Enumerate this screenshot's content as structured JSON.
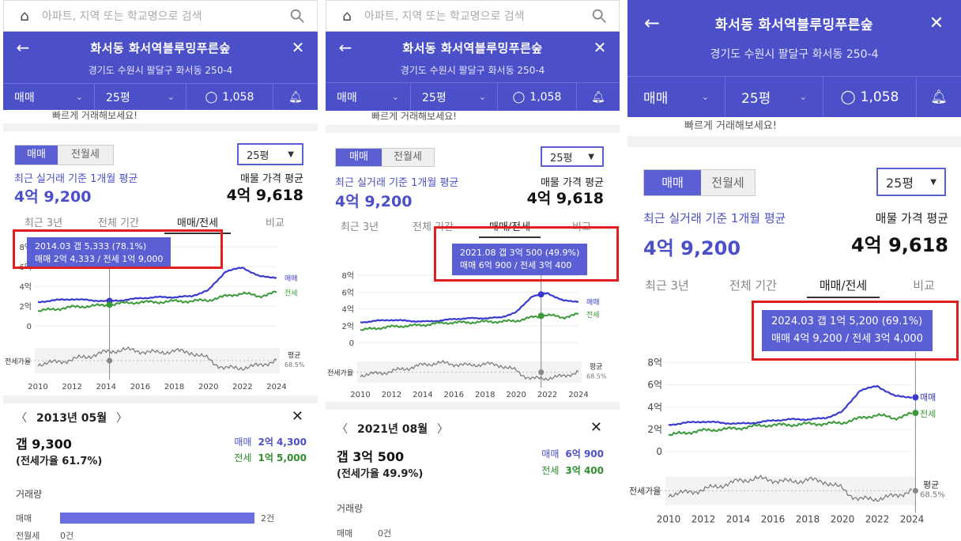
{
  "colors": {
    "brand": "#4b4fc8",
    "sale": "#3a3ad0",
    "jeonse": "#3a9a3a",
    "ratio": "#777777",
    "highlight": "#e02020"
  },
  "search": {
    "placeholder": "아파트, 지역 또는 학교명으로 검색",
    "home_icon": "home-icon",
    "search_icon": "search-icon"
  },
  "header": {
    "title": "화서동 화서역블루밍푸른숲",
    "address": "경기도 수원시 팔달구 화서동 250-4",
    "back_icon": "back-arrow-icon",
    "close_icon": "close-icon"
  },
  "filters": {
    "trade": "매매",
    "size": "25평",
    "comments": "1,058",
    "bell_icon": "bell-icon"
  },
  "toast": "빠르게 거래해보세요!",
  "segment": {
    "sale": "매매",
    "rent": "전월세"
  },
  "size_dropdown": "25평",
  "summary": {
    "recent_label": "최근 실거래 기준 1개월 평균",
    "recent_value": "4억 9,200",
    "listing_label": "매물 가격 평균",
    "listing_value": "4억 9,618"
  },
  "tabs": [
    "최근 3년",
    "전체 기간",
    "매매/전세",
    "비교"
  ],
  "chart_data": {
    "type": "line",
    "title": "",
    "x": [
      2010,
      2011,
      2012,
      2013,
      2014,
      2015,
      2016,
      2017,
      2018,
      2019,
      2020,
      2021,
      2022,
      2023,
      2024
    ],
    "xticks": [
      "2010",
      "2012",
      "2014",
      "2016",
      "2018",
      "2020",
      "2022",
      "2024"
    ],
    "yticks": [
      "8억",
      "6억",
      "4억",
      "2억",
      "0"
    ],
    "ylim": [
      0,
      8
    ],
    "series": [
      {
        "name": "매매",
        "values": [
          2.4,
          2.6,
          2.7,
          2.6,
          2.5,
          2.6,
          2.8,
          2.9,
          2.9,
          3.0,
          3.6,
          5.5,
          5.9,
          5.0,
          4.9
        ]
      },
      {
        "name": "전세",
        "values": [
          1.5,
          1.7,
          1.9,
          2.0,
          2.1,
          2.3,
          2.4,
          2.4,
          2.5,
          2.5,
          2.6,
          3.0,
          3.3,
          3.0,
          3.4
        ]
      }
    ],
    "ratio_label": "전세가율",
    "avg_label": "평균",
    "avg_value": "68.5%"
  },
  "panels": [
    {
      "tooltip": {
        "line1": "2014.03  갭 5,333 (78.1%)",
        "line2": "매매 2억 4,333 / 전세 1억 9,000"
      },
      "detail": {
        "month": "2013년 05월",
        "gap": "갭 9,300",
        "ratio": "(전세가율 61.7%)",
        "sale_label": "매매",
        "sale_value": "2억 4,300",
        "jeonse_label": "전세",
        "jeonse_value": "1억 5,000",
        "volume_title": "거래량",
        "vol_sale_label": "매매",
        "vol_sale_value": "2건",
        "vol_rent_label": "전월세",
        "vol_rent_value": "0건"
      }
    },
    {
      "tooltip": {
        "line1": "2021.08  갭 3억 500 (49.9%)",
        "line2": "매매 6억 900 / 전세 3억 400"
      },
      "detail": {
        "month": "2021년 08월",
        "gap": "갭 3억 500",
        "ratio": "(전세가율 49.9%)",
        "sale_label": "매매",
        "sale_value": "6억 900",
        "jeonse_label": "전세",
        "jeonse_value": "3억 400",
        "volume_title": "거래량",
        "vol_sale_label": "매매",
        "vol_sale_value": "0건"
      }
    },
    {
      "tooltip": {
        "line1": "2024.03  갭 1억 5,200 (69.1%)",
        "line2": "매매 4억 9,200 / 전세 3억 4,000"
      }
    }
  ]
}
